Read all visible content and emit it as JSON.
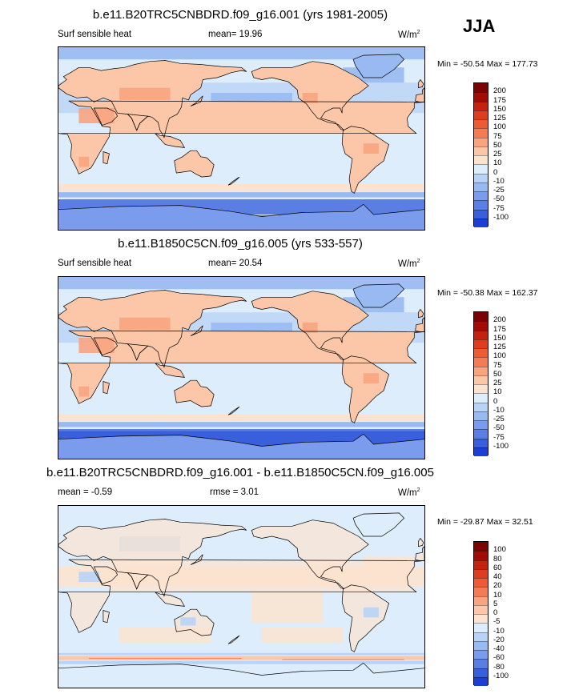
{
  "season": "JJA",
  "palette_warm": [
    "#fce3cf",
    "#fbc7a8",
    "#f8a47f",
    "#f47b53",
    "#ec5a36",
    "#de3d1f",
    "#c4210e",
    "#9f0b05",
    "#7a0202"
  ],
  "palette_cool": [
    "#deedfb",
    "#b9d3f6",
    "#98b9f2",
    "#7b9cec",
    "#5b7ee3",
    "#3a5fdc",
    "#1c3ed2",
    "#0d22a8",
    "#050b80"
  ],
  "panels": [
    {
      "title": "b.e11.B20TRC5CNBDRD.f09_g16.001 (yrs 1981-2005)",
      "left_label": "Surf sensible heat",
      "mid_label": "mean=  19.96",
      "units": "W/m",
      "units_sup": "2",
      "minmax": "Min = -50.54 Max = 177.73",
      "levels": [
        "200",
        "175",
        "150",
        "125",
        "100",
        "75",
        "50",
        "25",
        "10",
        "0",
        "-10",
        "-25",
        "-50",
        "-75",
        "-100"
      ]
    },
    {
      "title": "b.e11.B1850C5CN.f09_g16.005 (yrs 533-557)",
      "left_label": "Surf sensible heat",
      "mid_label": "mean=  20.54",
      "units": "W/m",
      "units_sup": "2",
      "minmax": "Min = -50.38 Max = 162.37",
      "levels": [
        "200",
        "175",
        "150",
        "125",
        "100",
        "75",
        "50",
        "25",
        "10",
        "0",
        "-10",
        "-25",
        "-50",
        "-75",
        "-100"
      ]
    },
    {
      "title": "b.e11.B20TRC5CNBDRD.f09_g16.001 - b.e11.B1850C5CN.f09_g16.005",
      "left_label": "mean =  -0.59",
      "mid_label": "rmse =   3.01",
      "units": "W/m",
      "units_sup": "2",
      "minmax": "Min = -29.87 Max =  32.51",
      "levels": [
        "100",
        "80",
        "60",
        "40",
        "20",
        "10",
        "5",
        "0",
        "-5",
        "-10",
        "-20",
        "-40",
        "-60",
        "-80",
        "-100"
      ]
    }
  ]
}
